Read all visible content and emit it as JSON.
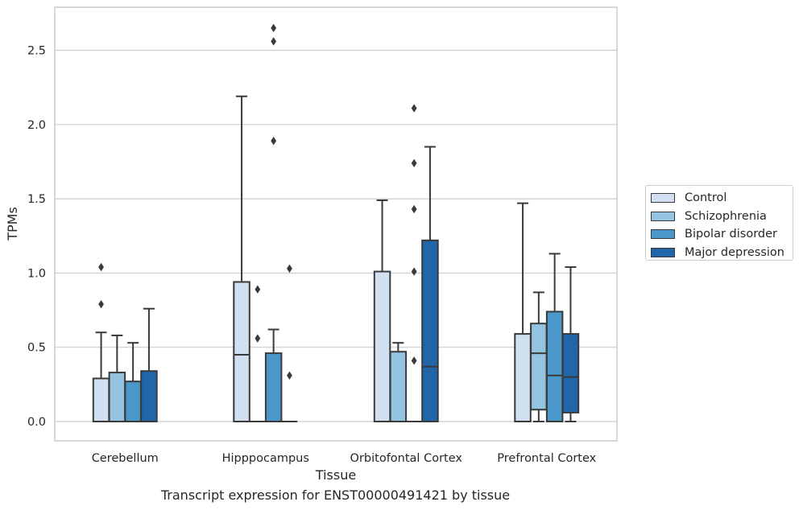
{
  "caption": "Transcript expression for ENST00000491421 by tissue",
  "colors": {
    "Control": "#d0e0f0",
    "Schizophrenia": "#94c4df",
    "Bipolar disorder": "#4a98c9",
    "Major depression": "#2066a8",
    "grid": "#cccccc",
    "box_edge": "#3a3a3a"
  },
  "legend": {
    "items": [
      "Control",
      "Schizophrenia",
      "Bipolar disorder",
      "Major depression"
    ]
  },
  "chart_data": {
    "type": "box",
    "title": "",
    "xlabel": "Tissue",
    "ylabel": "TPMs",
    "ylim": [
      -0.13,
      2.79
    ],
    "yticks": [
      0.0,
      0.5,
      1.0,
      1.5,
      2.0,
      2.5
    ],
    "ytick_labels": [
      "0.0",
      "0.5",
      "1.0",
      "1.5",
      "2.0",
      "2.5"
    ],
    "grid": "horizontal",
    "legend_position": "right",
    "categories": [
      "Cerebellum",
      "Hipppocampus",
      "Orbitofontal Cortex",
      "Prefrontal Cortex"
    ],
    "series": [
      {
        "name": "Control",
        "boxes": [
          {
            "q1": 0.0,
            "median": 0.0,
            "q3": 0.29,
            "whisker_low": 0.0,
            "whisker_high": 0.6,
            "outliers": [
              0.79,
              1.04
            ]
          },
          {
            "q1": 0.0,
            "median": 0.45,
            "q3": 0.94,
            "whisker_low": 0.0,
            "whisker_high": 2.19,
            "outliers": []
          },
          {
            "q1": 0.0,
            "median": 0.0,
            "q3": 1.01,
            "whisker_low": 0.0,
            "whisker_high": 1.49,
            "outliers": []
          },
          {
            "q1": 0.0,
            "median": 0.0,
            "q3": 0.59,
            "whisker_low": 0.0,
            "whisker_high": 1.47,
            "outliers": []
          }
        ]
      },
      {
        "name": "Schizophrenia",
        "boxes": [
          {
            "q1": 0.0,
            "median": 0.0,
            "q3": 0.33,
            "whisker_low": 0.0,
            "whisker_high": 0.58,
            "outliers": []
          },
          {
            "q1": 0.0,
            "median": 0.0,
            "q3": 0.0,
            "whisker_low": 0.0,
            "whisker_high": 0.0,
            "outliers": [
              0.56,
              0.89
            ]
          },
          {
            "q1": 0.0,
            "median": 0.0,
            "q3": 0.47,
            "whisker_low": 0.0,
            "whisker_high": 0.53,
            "outliers": []
          },
          {
            "q1": 0.08,
            "median": 0.46,
            "q3": 0.66,
            "whisker_low": 0.0,
            "whisker_high": 0.87,
            "outliers": []
          }
        ]
      },
      {
        "name": "Bipolar disorder",
        "boxes": [
          {
            "q1": 0.0,
            "median": 0.0,
            "q3": 0.27,
            "whisker_low": 0.0,
            "whisker_high": 0.53,
            "outliers": []
          },
          {
            "q1": 0.0,
            "median": 0.0,
            "q3": 0.46,
            "whisker_low": 0.0,
            "whisker_high": 0.62,
            "outliers": [
              1.89,
              2.56,
              2.65
            ]
          },
          {
            "q1": 0.0,
            "median": 0.0,
            "q3": 0.0,
            "whisker_low": 0.0,
            "whisker_high": 0.0,
            "outliers": [
              0.41,
              1.01,
              1.43,
              1.74,
              2.11
            ]
          },
          {
            "q1": 0.0,
            "median": 0.31,
            "q3": 0.74,
            "whisker_low": 0.0,
            "whisker_high": 1.13,
            "outliers": []
          }
        ]
      },
      {
        "name": "Major depression",
        "boxes": [
          {
            "q1": 0.0,
            "median": 0.0,
            "q3": 0.34,
            "whisker_low": 0.0,
            "whisker_high": 0.76,
            "outliers": []
          },
          {
            "q1": 0.0,
            "median": 0.0,
            "q3": 0.0,
            "whisker_low": 0.0,
            "whisker_high": 0.0,
            "outliers": [
              0.31,
              1.03
            ]
          },
          {
            "q1": 0.0,
            "median": 0.37,
            "q3": 1.22,
            "whisker_low": 0.0,
            "whisker_high": 1.85,
            "outliers": []
          },
          {
            "q1": 0.06,
            "median": 0.3,
            "q3": 0.59,
            "whisker_low": 0.0,
            "whisker_high": 1.04,
            "outliers": []
          }
        ]
      }
    ]
  }
}
